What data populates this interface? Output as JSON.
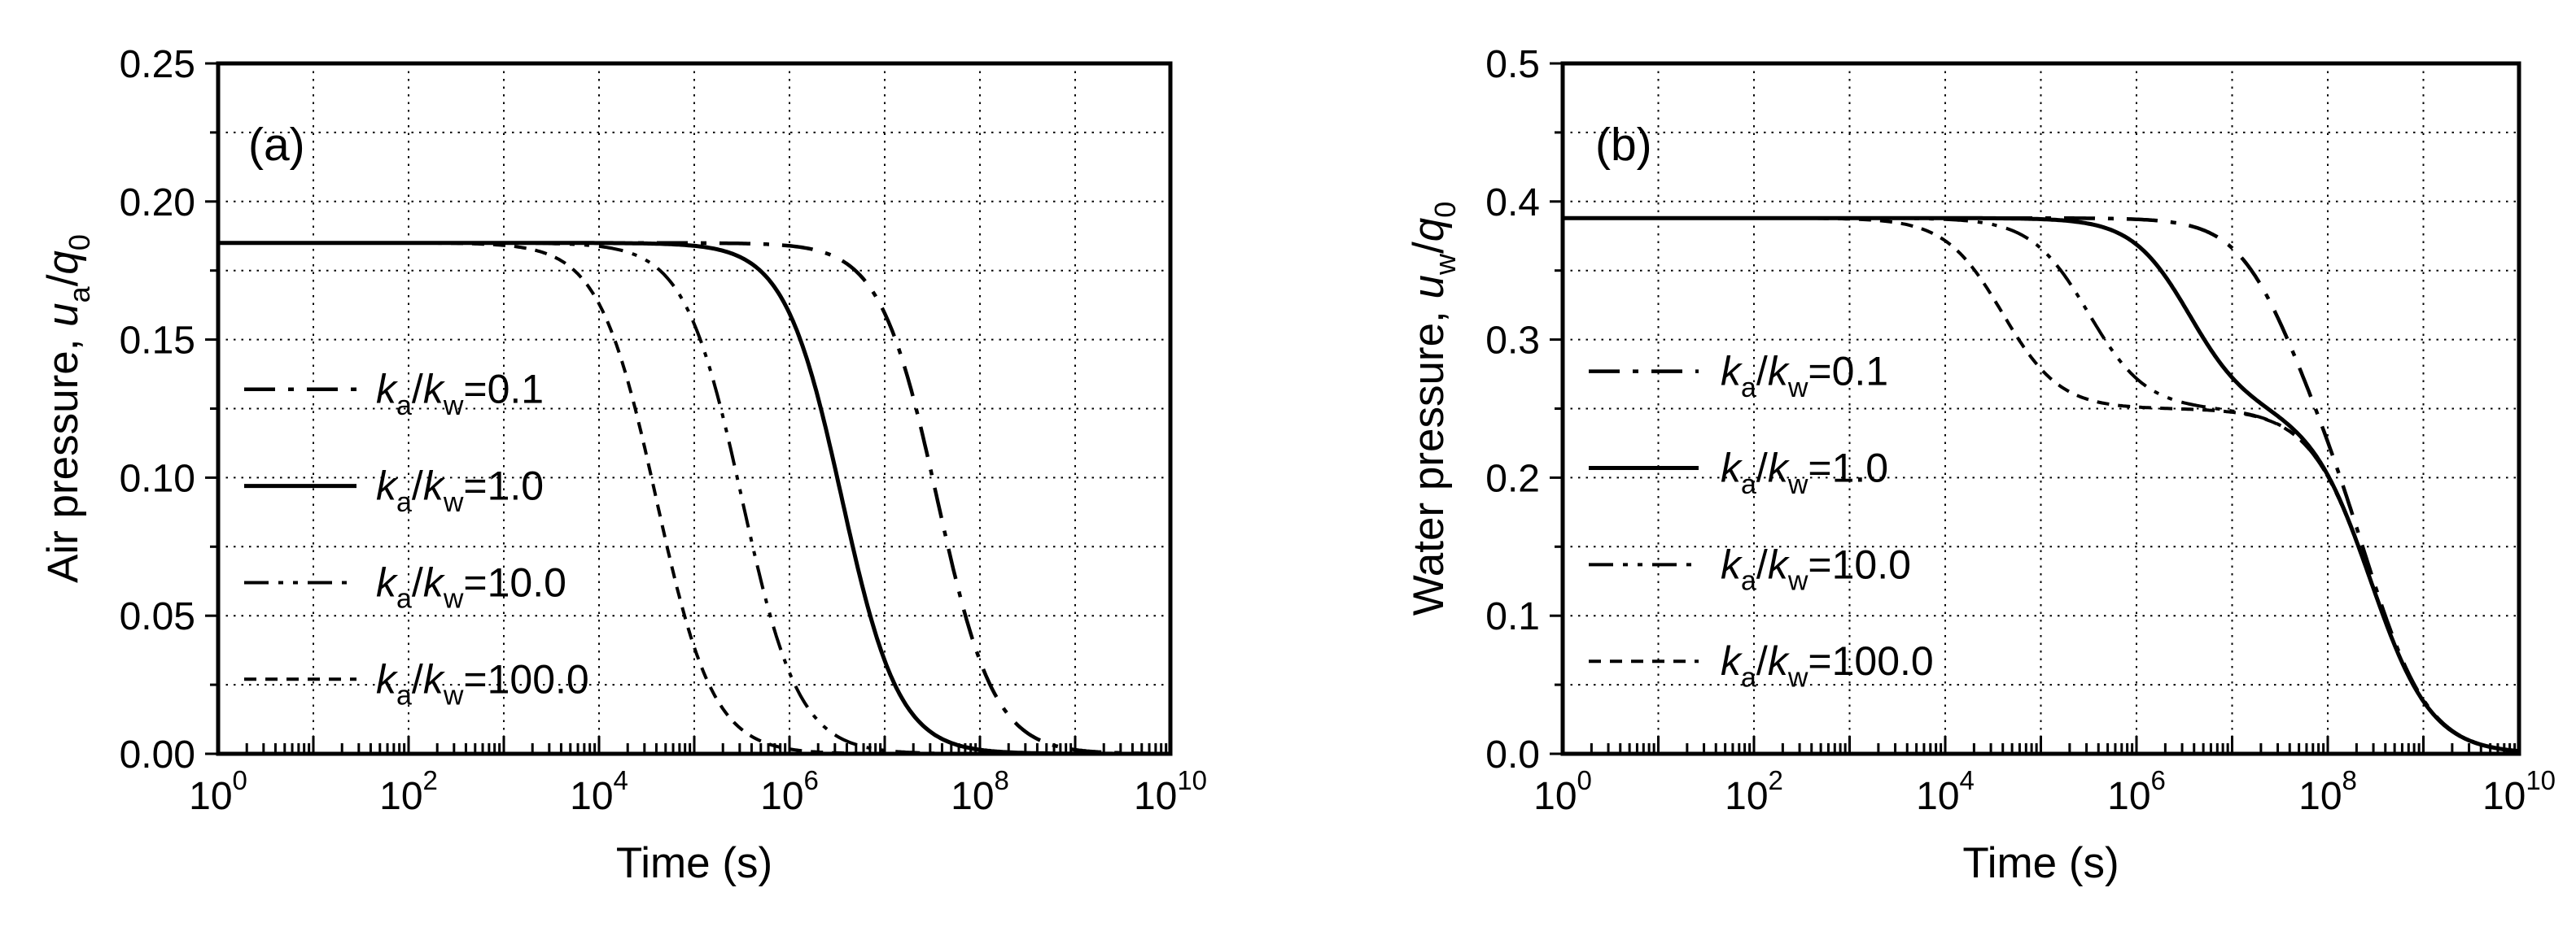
{
  "page": {
    "background": "#ffffff",
    "ink_color": "#000000"
  },
  "chart_data": [
    {
      "id": "a",
      "type": "line",
      "panel_tag": "(a)",
      "xlabel": "Time (s)",
      "ylabel_plain": "Air pressure, u_a/q_0",
      "ylabel_parts": [
        {
          "text": "Air pressure, ",
          "style": "normal"
        },
        {
          "text": "u",
          "style": "italic"
        },
        {
          "text": "a",
          "style": "sub"
        },
        {
          "text": "/",
          "style": "normal"
        },
        {
          "text": "q",
          "style": "italic"
        },
        {
          "text": "0",
          "style": "sub"
        }
      ],
      "x_scale": "log",
      "x_min_exponent": 0,
      "x_max_exponent": 10,
      "x_tick_base": "10",
      "x_tick_exponents": [
        0,
        2,
        4,
        6,
        8,
        10
      ],
      "ylim": [
        0,
        0.25
      ],
      "y_major_step": 0.05,
      "y_minor_step": 0.025,
      "y_tick_labels": [
        "0.00",
        "0.05",
        "0.10",
        "0.15",
        "0.20",
        "0.25"
      ],
      "grid": {
        "style": "dotted",
        "x_every_decade": true,
        "y_every_minor_step": true
      },
      "legend_position": "inside-left",
      "legend_label_prefix_parts": [
        {
          "text": "k",
          "style": "italic"
        },
        {
          "text": "a",
          "style": "sub"
        },
        {
          "text": "/",
          "style": "normal"
        },
        {
          "text": "k",
          "style": "italic"
        },
        {
          "text": "w",
          "style": "sub"
        }
      ],
      "series": [
        {
          "name": "ka/kw=0.1",
          "legend_value": "0.1",
          "line_style": "dash-dot",
          "initial_value": 0.185,
          "final_value": 0.0,
          "components": [
            {
              "amp": 0.185,
              "log10_t_mid": 7.55,
              "width_decades": 0.3
            }
          ],
          "key_points_log10t_vs_u": [
            [
              0,
              0.185
            ],
            [
              6.9,
              0.167
            ],
            [
              7.55,
              0.093
            ],
            [
              8.2,
              0.019
            ],
            [
              10,
              0.0
            ]
          ]
        },
        {
          "name": "ka/kw=1.0",
          "legend_value": "1.0",
          "line_style": "solid",
          "initial_value": 0.185,
          "final_value": 0.0,
          "components": [
            {
              "amp": 0.185,
              "log10_t_mid": 6.55,
              "width_decades": 0.3
            }
          ],
          "key_points_log10t_vs_u": [
            [
              0,
              0.185
            ],
            [
              5.9,
              0.167
            ],
            [
              6.55,
              0.093
            ],
            [
              7.2,
              0.019
            ],
            [
              10,
              0.0
            ]
          ]
        },
        {
          "name": "ka/kw=10.0",
          "legend_value": "10.0",
          "line_style": "dash-dot-dot",
          "initial_value": 0.185,
          "final_value": 0.0,
          "components": [
            {
              "amp": 0.185,
              "log10_t_mid": 5.5,
              "width_decades": 0.3
            }
          ],
          "key_points_log10t_vs_u": [
            [
              0,
              0.185
            ],
            [
              4.85,
              0.167
            ],
            [
              5.5,
              0.093
            ],
            [
              6.15,
              0.019
            ],
            [
              10,
              0.0
            ]
          ]
        },
        {
          "name": "ka/kw=100.0",
          "legend_value": "100.0",
          "line_style": "dash",
          "initial_value": 0.185,
          "final_value": 0.0,
          "components": [
            {
              "amp": 0.185,
              "log10_t_mid": 4.6,
              "width_decades": 0.3
            }
          ],
          "key_points_log10t_vs_u": [
            [
              0,
              0.185
            ],
            [
              3.95,
              0.167
            ],
            [
              4.6,
              0.093
            ],
            [
              5.25,
              0.019
            ],
            [
              10,
              0.0
            ]
          ]
        }
      ]
    },
    {
      "id": "b",
      "type": "line",
      "panel_tag": "(b)",
      "xlabel": "Time (s)",
      "ylabel_plain": "Water pressure, u_w/q_0",
      "ylabel_parts": [
        {
          "text": "Water pressure, ",
          "style": "normal"
        },
        {
          "text": "u",
          "style": "italic"
        },
        {
          "text": "w",
          "style": "sub"
        },
        {
          "text": "/",
          "style": "normal"
        },
        {
          "text": "q",
          "style": "italic"
        },
        {
          "text": "0",
          "style": "sub"
        }
      ],
      "x_scale": "log",
      "x_min_exponent": 0,
      "x_max_exponent": 10,
      "x_tick_base": "10",
      "x_tick_exponents": [
        0,
        2,
        4,
        6,
        8,
        10
      ],
      "ylim": [
        0,
        0.5
      ],
      "y_major_step": 0.1,
      "y_minor_step": 0.05,
      "y_tick_labels": [
        "0.0",
        "0.1",
        "0.2",
        "0.3",
        "0.4",
        "0.5"
      ],
      "grid": {
        "style": "dotted",
        "x_every_decade": true,
        "y_every_minor_step": true
      },
      "legend_position": "inside-left",
      "legend_label_prefix_parts": [
        {
          "text": "k",
          "style": "italic"
        },
        {
          "text": "a",
          "style": "sub"
        },
        {
          "text": "/",
          "style": "normal"
        },
        {
          "text": "k",
          "style": "italic"
        },
        {
          "text": "w",
          "style": "sub"
        }
      ],
      "intermediate_plateau_value": 0.25,
      "series": [
        {
          "name": "ka/kw=0.1",
          "legend_value": "0.1",
          "line_style": "dash-dot",
          "initial_value": 0.388,
          "final_value": 0.0,
          "components": [
            {
              "amp": 0.138,
              "log10_t_mid": 7.55,
              "width_decades": 0.3
            },
            {
              "amp": 0.25,
              "log10_t_mid": 8.45,
              "width_decades": 0.32
            }
          ],
          "key_points_log10t_vs_u": [
            [
              0,
              0.388
            ],
            [
              6.9,
              0.374
            ],
            [
              7.55,
              0.316
            ],
            [
              8.0,
              0.245
            ],
            [
              8.45,
              0.14
            ],
            [
              9.1,
              0.028
            ],
            [
              10,
              0.0
            ]
          ]
        },
        {
          "name": "ka/kw=1.0",
          "legend_value": "1.0",
          "line_style": "solid",
          "initial_value": 0.388,
          "final_value": 0.0,
          "components": [
            {
              "amp": 0.138,
              "log10_t_mid": 6.55,
              "width_decades": 0.3
            },
            {
              "amp": 0.25,
              "log10_t_mid": 8.45,
              "width_decades": 0.32
            }
          ],
          "key_points_log10t_vs_u": [
            [
              0,
              0.388
            ],
            [
              5.9,
              0.374
            ],
            [
              6.55,
              0.319
            ],
            [
              7.2,
              0.264
            ],
            [
              7.8,
              0.228
            ],
            [
              8.45,
              0.126
            ],
            [
              9.1,
              0.026
            ],
            [
              10,
              0.0
            ]
          ]
        },
        {
          "name": "ka/kw=10.0",
          "legend_value": "10.0",
          "line_style": "dash-dot-dot",
          "initial_value": 0.388,
          "final_value": 0.0,
          "components": [
            {
              "amp": 0.138,
              "log10_t_mid": 5.5,
              "width_decades": 0.3
            },
            {
              "amp": 0.25,
              "log10_t_mid": 8.45,
              "width_decades": 0.32
            }
          ],
          "key_points_log10t_vs_u": [
            [
              0,
              0.388
            ],
            [
              4.85,
              0.374
            ],
            [
              5.5,
              0.319
            ],
            [
              6.15,
              0.264
            ],
            [
              7.0,
              0.25
            ],
            [
              7.8,
              0.225
            ],
            [
              8.45,
              0.125
            ],
            [
              9.1,
              0.026
            ],
            [
              10,
              0.0
            ]
          ]
        },
        {
          "name": "ka/kw=100.0",
          "legend_value": "100.0",
          "line_style": "dash",
          "initial_value": 0.388,
          "final_value": 0.0,
          "components": [
            {
              "amp": 0.138,
              "log10_t_mid": 4.6,
              "width_decades": 0.3
            },
            {
              "amp": 0.25,
              "log10_t_mid": 8.45,
              "width_decades": 0.32
            }
          ],
          "key_points_log10t_vs_u": [
            [
              0,
              0.388
            ],
            [
              3.95,
              0.374
            ],
            [
              4.6,
              0.319
            ],
            [
              5.25,
              0.264
            ],
            [
              6.5,
              0.25
            ],
            [
              7.8,
              0.225
            ],
            [
              8.45,
              0.125
            ],
            [
              9.1,
              0.026
            ],
            [
              10,
              0.0
            ]
          ]
        }
      ]
    }
  ]
}
